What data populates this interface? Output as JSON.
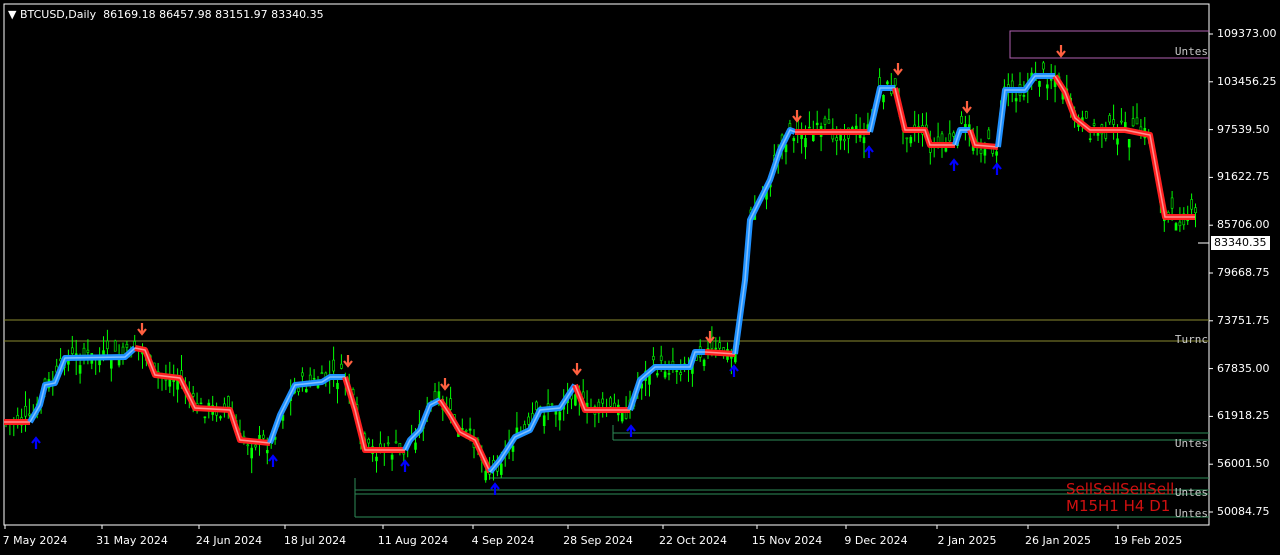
{
  "header": {
    "menu_icon": "triangle-down-icon",
    "symbol": "BTCUSD,Daily",
    "open": "86169.18",
    "high": "86457.98",
    "low": "83151.97",
    "close": "83340.35"
  },
  "price_axis": [
    "109373.00",
    "103456.25",
    "97539.50",
    "91622.75",
    "85706.00",
    "79668.75",
    "73751.75",
    "67835.00",
    "61918.25",
    "56001.50",
    "50084.75"
  ],
  "current_price": "83340.35",
  "date_axis": [
    "7 May 2024",
    "31 May 2024",
    "24 Jun 2024",
    "18 Jul 2024",
    "11 Aug 2024",
    "4 Sep 2024",
    "28 Sep 2024",
    "22 Oct 2024",
    "15 Nov 2024",
    "9 Dec 2024",
    "2 Jan 2025",
    "26 Jan 2025",
    "19 Feb 2025"
  ],
  "line_labels": {
    "purple": "Untes",
    "turn": "Turnc",
    "green1": "Untes",
    "green2": "Untes",
    "green3": "Untes"
  },
  "signal": {
    "line1": "SellSellSellSell",
    "line2": "M15H1 H4 D1"
  },
  "colors": {
    "bull_candle": "#00ff00",
    "up_trend": "#1e90ff",
    "down_trend": "#ff2020",
    "sell_arrow": "#ff6040",
    "buy_arrow": "#0000ff",
    "text": "#ffffff"
  },
  "chart_data": {
    "type": "candlestick",
    "symbol": "BTCUSD",
    "timeframe": "Daily",
    "ylim": [
      50084.75,
      109373.0
    ]
  }
}
